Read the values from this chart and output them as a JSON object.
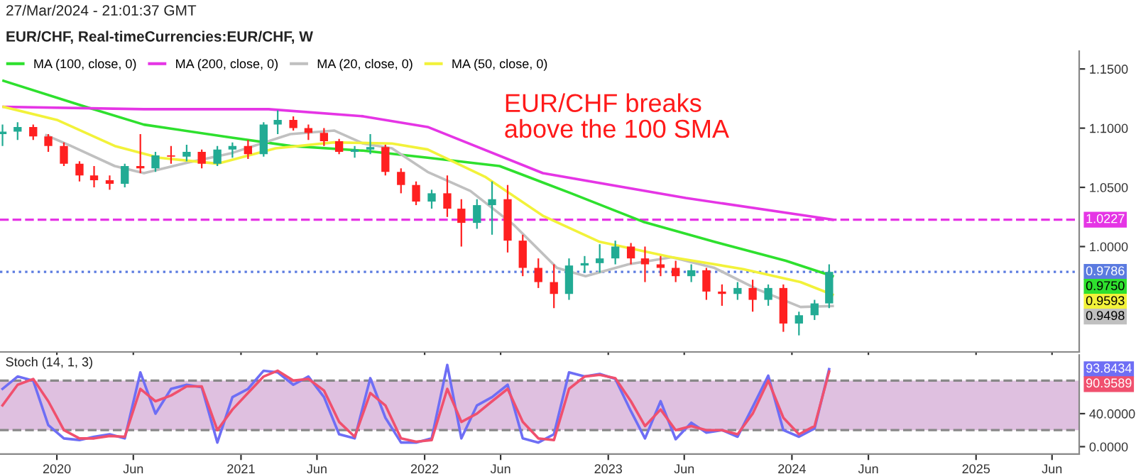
{
  "chart_data": [
    {
      "type": "candlestick",
      "title": "27/Mar/2024 - 21:01:37 GMT",
      "subtitle": "EUR/CHF, Real-timeCurrencies:EUR/CHF, W",
      "annotations": [
        "EUR/CHF breaks\nabove the 100 SMA",
        "0.9750",
        "0.9593",
        "0.9498"
      ],
      "x": [
        "2019-09-15",
        "2019-10-15",
        "2019-11-15",
        "2019-12-15",
        "2020-01-15",
        "2020-02-15",
        "2020-03-15",
        "2020-04-15",
        "2020-05-15",
        "2020-06-15",
        "2020-07-15",
        "2020-08-15",
        "2020-09-15",
        "2020-10-15",
        "2020-11-15",
        "2020-12-15",
        "2021-01-15",
        "2021-02-15",
        "2021-03-15",
        "2021-04-15",
        "2021-05-15",
        "2021-06-15",
        "2021-07-15",
        "2021-08-15",
        "2021-09-15",
        "2021-10-15",
        "2021-11-15",
        "2021-12-15",
        "2022-01-15",
        "2022-02-15",
        "2022-03-15",
        "2022-04-15",
        "2022-05-15",
        "2022-06-15",
        "2022-07-15",
        "2022-08-15",
        "2022-09-15",
        "2022-10-15",
        "2022-11-15",
        "2022-12-15",
        "2023-01-15",
        "2023-02-15",
        "2023-03-15",
        "2023-04-15",
        "2023-05-15",
        "2023-06-15",
        "2023-07-15",
        "2023-08-15",
        "2023-09-15",
        "2023-10-15",
        "2023-11-15",
        "2023-12-15",
        "2024-01-15",
        "2024-02-15",
        "2024-03-15"
      ],
      "ohlc": [
        [
          1.095,
          1.103,
          1.085,
          1.097
        ],
        [
          1.097,
          1.105,
          1.09,
          1.101
        ],
        [
          1.101,
          1.103,
          1.09,
          1.093
        ],
        [
          1.093,
          1.095,
          1.08,
          1.085
        ],
        [
          1.085,
          1.088,
          1.068,
          1.07
        ],
        [
          1.07,
          1.072,
          1.055,
          1.06
        ],
        [
          1.06,
          1.068,
          1.05,
          1.056
        ],
        [
          1.056,
          1.06,
          1.048,
          1.053
        ],
        [
          1.053,
          1.07,
          1.05,
          1.068
        ],
        [
          1.068,
          1.095,
          1.062,
          1.066
        ],
        [
          1.066,
          1.08,
          1.063,
          1.077
        ],
        [
          1.077,
          1.085,
          1.07,
          1.076
        ],
        [
          1.076,
          1.086,
          1.072,
          1.08
        ],
        [
          1.08,
          1.082,
          1.066,
          1.07
        ],
        [
          1.07,
          1.085,
          1.068,
          1.082
        ],
        [
          1.082,
          1.088,
          1.075,
          1.085
        ],
        [
          1.085,
          1.09,
          1.074,
          1.078
        ],
        [
          1.078,
          1.105,
          1.076,
          1.103
        ],
        [
          1.103,
          1.115,
          1.095,
          1.107
        ],
        [
          1.107,
          1.11,
          1.098,
          1.1
        ],
        [
          1.1,
          1.103,
          1.09,
          1.096
        ],
        [
          1.096,
          1.1,
          1.085,
          1.089
        ],
        [
          1.089,
          1.091,
          1.078,
          1.08
        ],
        [
          1.08,
          1.085,
          1.075,
          1.082
        ],
        [
          1.082,
          1.095,
          1.078,
          1.084
        ],
        [
          1.084,
          1.086,
          1.06,
          1.063
        ],
        [
          1.063,
          1.066,
          1.045,
          1.052
        ],
        [
          1.052,
          1.055,
          1.035,
          1.038
        ],
        [
          1.038,
          1.048,
          1.032,
          1.045
        ],
        [
          1.045,
          1.06,
          1.025,
          1.032
        ],
        [
          1.032,
          1.04,
          1.0,
          1.02
        ],
        [
          1.02,
          1.04,
          1.015,
          1.035
        ],
        [
          1.035,
          1.055,
          1.01,
          1.04
        ],
        [
          1.04,
          1.052,
          0.995,
          1.005
        ],
        [
          1.005,
          1.01,
          0.975,
          0.982
        ],
        [
          0.982,
          0.99,
          0.965,
          0.97
        ],
        [
          0.97,
          0.985,
          0.948,
          0.96
        ],
        [
          0.96,
          0.99,
          0.955,
          0.984
        ],
        [
          0.984,
          0.992,
          0.978,
          0.986
        ],
        [
          0.986,
          1.002,
          0.978,
          0.99
        ],
        [
          0.99,
          1.005,
          0.985,
          1.0
        ],
        [
          1.0,
          1.003,
          0.985,
          0.99
        ],
        [
          0.99,
          1.0,
          0.97,
          0.985
        ],
        [
          0.985,
          0.992,
          0.975,
          0.982
        ],
        [
          0.982,
          0.988,
          0.97,
          0.975
        ],
        [
          0.975,
          0.985,
          0.97,
          0.98
        ],
        [
          0.98,
          0.982,
          0.955,
          0.962
        ],
        [
          0.962,
          0.968,
          0.95,
          0.96
        ],
        [
          0.96,
          0.97,
          0.955,
          0.965
        ],
        [
          0.965,
          0.972,
          0.945,
          0.955
        ],
        [
          0.955,
          0.968,
          0.95,
          0.965
        ],
        [
          0.965,
          0.968,
          0.928,
          0.935
        ],
        [
          0.935,
          0.945,
          0.925,
          0.942
        ],
        [
          0.942,
          0.955,
          0.938,
          0.952
        ],
        [
          0.952,
          0.985,
          0.948,
          0.9786
        ]
      ],
      "colors": [
        "#22ab94",
        "#22ab94",
        "#ff2020",
        "#ff2020",
        "#ff2020",
        "#ff2020",
        "#ff2020",
        "#ff2020",
        "#22ab94",
        "#ff2020",
        "#22ab94",
        "#ff2020",
        "#22ab94",
        "#ff2020",
        "#22ab94",
        "#22ab94",
        "#ff2020",
        "#22ab94",
        "#22ab94",
        "#ff2020",
        "#ff2020",
        "#ff2020",
        "#ff2020",
        "#22ab94",
        "#22ab94",
        "#ff2020",
        "#ff2020",
        "#ff2020",
        "#22ab94",
        "#ff2020",
        "#ff2020",
        "#22ab94",
        "#22ab94",
        "#ff2020",
        "#ff2020",
        "#ff2020",
        "#ff2020",
        "#22ab94",
        "#22ab94",
        "#22ab94",
        "#22ab94",
        "#ff2020",
        "#ff2020",
        "#ff2020",
        "#ff2020",
        "#22ab94",
        "#ff2020",
        "#ff2020",
        "#22ab94",
        "#ff2020",
        "#22ab94",
        "#ff2020",
        "#22ab94",
        "#22ab94",
        "#22ab94"
      ],
      "series": [
        {
          "type": "line",
          "name": "MA (100, close, 0)",
          "color": "#2ee02e",
          "x": [
            "2019-09-17",
            "2020-02-27",
            "2020-06-22",
            "2020-12-14",
            "2021-04-09",
            "2021-09-01",
            "2022-01-07",
            "2022-05-30",
            "2022-10-19",
            "2023-03-11",
            "2023-07-31",
            "2023-12-20",
            "2024-03-22"
          ],
          "values": [
            1.14,
            1.118,
            1.103,
            1.092,
            1.085,
            1.081,
            1.075,
            1.068,
            1.045,
            1.021,
            1.004,
            0.988,
            0.975
          ]
        },
        {
          "type": "line",
          "name": "MA (200, close, 0)",
          "color": "#e535e5",
          "x": [
            "2019-09-17",
            "2020-06-22",
            "2021-02-25",
            "2021-09-01",
            "2022-01-07",
            "2022-08-24",
            "2023-06-04",
            "2024-02-15",
            "2024-03-22"
          ],
          "values": [
            1.118,
            1.116,
            1.116,
            1.11,
            1.101,
            1.062,
            1.041,
            1.025,
            1.0227
          ]
        },
        {
          "type": "line",
          "name": "MA (20, close, 0)",
          "color": "#c0c0c0",
          "x": [
            "2019-12-11",
            "2020-01-29",
            "2020-04-25",
            "2020-06-22",
            "2020-09-18",
            "2020-12-14",
            "2021-04-09",
            "2021-07-05",
            "2021-09-01",
            "2021-10-28",
            "2022-01-07",
            "2022-04-02",
            "2022-06-28",
            "2022-09-21",
            "2022-11-17",
            "2023-02-10",
            "2023-05-07",
            "2023-07-31",
            "2023-10-24",
            "2024-01-18",
            "2024-03-22"
          ],
          "values": [
            1.094,
            1.085,
            1.068,
            1.062,
            1.071,
            1.079,
            1.095,
            1.098,
            1.087,
            1.083,
            1.063,
            1.047,
            1.018,
            0.982,
            0.975,
            0.985,
            0.991,
            0.982,
            0.964,
            0.949,
            0.9498
          ]
        },
        {
          "type": "line",
          "name": "MA (50, close, 0)",
          "color": "#f2f23a",
          "x": [
            "2019-09-17",
            "2020-01-01",
            "2020-04-25",
            "2020-07-22",
            "2020-11-15",
            "2021-03-11",
            "2021-07-05",
            "2021-10-28",
            "2022-01-07",
            "2022-05-01",
            "2022-08-24",
            "2022-12-15",
            "2023-05-07",
            "2023-09-26",
            "2024-01-18",
            "2024-03-22"
          ],
          "values": [
            1.118,
            1.107,
            1.085,
            1.075,
            1.07,
            1.083,
            1.088,
            1.087,
            1.082,
            1.059,
            1.026,
            1.004,
            0.991,
            0.981,
            0.97,
            0.9593
          ]
        }
      ],
      "ref_lines": [
        {
          "axis": "y",
          "value": 1.0227,
          "label": "1.0227",
          "color": "#e535e5",
          "line_style": "dashed"
        },
        {
          "axis": "y",
          "value": 0.9786,
          "label": "0.9786",
          "color": "#5b7be0",
          "line_style": "dotted"
        }
      ],
      "xlim": [
        "2019-09-10",
        "2025-07-25"
      ],
      "xticks": [
        {
          "value": "2020-01-01",
          "label": null
        },
        {
          "value": "2020-06-01",
          "label": null
        },
        {
          "value": "2021-01-01",
          "label": null
        },
        {
          "value": "2021-06-01",
          "label": null
        },
        {
          "value": "2022-01-01",
          "label": null
        },
        {
          "value": "2022-06-01",
          "label": null
        },
        {
          "value": "2023-01-01",
          "label": null
        },
        {
          "value": "2023-06-01",
          "label": null
        },
        {
          "value": "2024-01-01",
          "label": null
        },
        {
          "value": "2024-06-01",
          "label": null
        },
        {
          "value": "2025-01-01",
          "label": null
        },
        {
          "value": "2025-06-01",
          "label": null
        }
      ],
      "ylim": [
        0.911,
        1.165
      ],
      "yticks": [
        {
          "value": 1.0,
          "label": "1.0000"
        },
        {
          "value": 1.05,
          "label": "1.0500"
        },
        {
          "value": 1.1,
          "label": "1.1000"
        },
        {
          "value": 1.15,
          "label": "1.1500"
        }
      ],
      "tick_labels": "y",
      "legend": "top left"
    },
    {
      "type": "line",
      "title": "Stoch (14, 1, 3)",
      "annotations": [
        "93.8434",
        "90.9589"
      ],
      "x": [
        "2019-09-15",
        "2019-10-15",
        "2019-11-15",
        "2019-12-15",
        "2020-01-15",
        "2020-02-15",
        "2020-03-15",
        "2020-04-15",
        "2020-05-15",
        "2020-06-15",
        "2020-07-15",
        "2020-08-15",
        "2020-09-15",
        "2020-10-15",
        "2020-11-15",
        "2020-12-15",
        "2021-01-15",
        "2021-02-15",
        "2021-03-15",
        "2021-04-15",
        "2021-05-15",
        "2021-06-15",
        "2021-07-15",
        "2021-08-15",
        "2021-09-15",
        "2021-10-15",
        "2021-11-15",
        "2021-12-15",
        "2022-01-15",
        "2022-02-15",
        "2022-03-15",
        "2022-04-15",
        "2022-05-15",
        "2022-06-15",
        "2022-07-15",
        "2022-08-15",
        "2022-09-15",
        "2022-10-15",
        "2022-11-15",
        "2022-12-15",
        "2023-01-15",
        "2023-02-15",
        "2023-03-15",
        "2023-04-15",
        "2023-05-15",
        "2023-06-15",
        "2023-07-15",
        "2023-08-15",
        "2023-09-15",
        "2023-10-15",
        "2023-11-15",
        "2023-12-15",
        "2024-01-15",
        "2024-02-15",
        "2024-03-15"
      ],
      "series": [
        {
          "color": "#6e6ef5",
          "values": [
            70,
            85,
            80,
            26,
            10,
            8,
            12,
            15,
            10,
            90,
            40,
            70,
            75,
            72,
            5,
            60,
            70,
            92,
            90,
            75,
            85,
            60,
            15,
            10,
            83,
            35,
            5,
            5,
            10,
            99,
            10,
            50,
            60,
            75,
            10,
            5,
            15,
            90,
            85,
            88,
            82,
            43,
            10,
            55,
            9,
            29,
            17,
            20,
            12,
            48,
            86,
            20,
            12,
            22,
            93.8434
          ]
        },
        {
          "color": "#f0506e",
          "values": [
            50,
            75,
            82,
            55,
            20,
            10,
            10,
            13,
            12,
            70,
            55,
            62,
            73,
            73,
            20,
            45,
            65,
            85,
            92,
            80,
            82,
            68,
            30,
            12,
            65,
            50,
            10,
            6,
            8,
            70,
            30,
            40,
            55,
            70,
            30,
            10,
            8,
            70,
            85,
            87,
            83,
            55,
            25,
            45,
            20,
            25,
            20,
            20,
            15,
            40,
            80,
            35,
            15,
            25,
            90.9589
          ]
        }
      ],
      "ref_lines": [
        {
          "axis": "y",
          "value": 80,
          "color": "#888888",
          "line_style": "dashed"
        },
        {
          "axis": "y",
          "value": 20,
          "color": "#888888",
          "line_style": "dashed"
        }
      ],
      "bands": [
        {
          "axis": "y",
          "from": 20,
          "to": 80,
          "color": "#dfc0e0"
        }
      ],
      "xlim": [
        "2019-09-10",
        "2025-07-25"
      ],
      "xticks": [
        {
          "value": "2020-01-01",
          "label": "2020"
        },
        {
          "value": "2020-06-01",
          "label": "Jun"
        },
        {
          "value": "2021-01-01",
          "label": "2021"
        },
        {
          "value": "2021-06-01",
          "label": "Jun"
        },
        {
          "value": "2022-01-01",
          "label": "2022"
        },
        {
          "value": "2022-06-01",
          "label": "Jun"
        },
        {
          "value": "2023-01-01",
          "label": "2023"
        },
        {
          "value": "2023-06-01",
          "label": "Jun"
        },
        {
          "value": "2024-01-01",
          "label": "2024"
        },
        {
          "value": "2024-06-01",
          "label": "Jun"
        },
        {
          "value": "2025-01-01",
          "label": "2025"
        },
        {
          "value": "2025-06-01",
          "label": "Jun"
        }
      ],
      "ylim": [
        -9,
        111
      ],
      "yticks": [
        {
          "value": 0,
          "label": "0.0000"
        },
        {
          "value": 40,
          "label": "40.0000"
        }
      ]
    }
  ]
}
